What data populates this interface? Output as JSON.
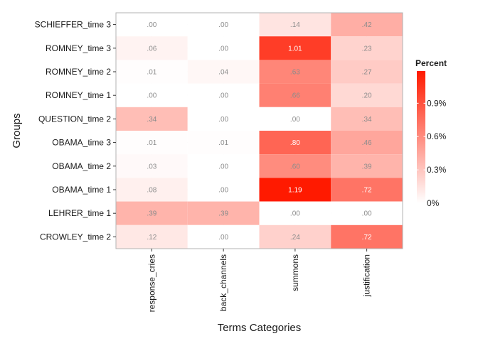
{
  "chart_data": {
    "type": "heatmap",
    "xlabel": "Terms Categories",
    "ylabel": "Groups",
    "x_categories": [
      "response_cries",
      "back_channels",
      "summons",
      "justification"
    ],
    "y_categories": [
      "SCHIEFFER_time 3",
      "ROMNEY_time 3",
      "ROMNEY_time 2",
      "ROMNEY_time 1",
      "QUESTION_time 2",
      "OBAMA_time 3",
      "OBAMA_time 2",
      "OBAMA_time 1",
      "LEHRER_time 1",
      "CROWLEY_time 2"
    ],
    "values": [
      [
        0.0,
        0.0,
        0.14,
        0.42
      ],
      [
        0.06,
        0.0,
        1.01,
        0.23
      ],
      [
        0.01,
        0.04,
        0.63,
        0.27
      ],
      [
        0.0,
        0.0,
        0.66,
        0.2
      ],
      [
        0.34,
        0.0,
        0.0,
        0.34
      ],
      [
        0.01,
        0.01,
        0.8,
        0.46
      ],
      [
        0.03,
        0.0,
        0.6,
        0.39
      ],
      [
        0.08,
        0.0,
        1.19,
        0.72
      ],
      [
        0.39,
        0.39,
        0.0,
        0.0
      ],
      [
        0.12,
        0.0,
        0.24,
        0.72
      ]
    ],
    "cell_labels": [
      [
        ".00",
        ".00",
        ".14",
        ".42"
      ],
      [
        ".06",
        ".00",
        "1.01",
        ".23"
      ],
      [
        ".01",
        ".04",
        ".63",
        ".27"
      ],
      [
        ".00",
        ".00",
        ".66",
        ".20"
      ],
      [
        ".34",
        ".00",
        ".00",
        ".34"
      ],
      [
        ".01",
        ".01",
        ".80",
        ".46"
      ],
      [
        ".03",
        ".00",
        ".60",
        ".39"
      ],
      [
        ".08",
        ".00",
        "1.19",
        ".72"
      ],
      [
        ".39",
        ".39",
        ".00",
        ".00"
      ],
      [
        ".12",
        ".00",
        ".24",
        ".72"
      ]
    ],
    "legend": {
      "title": "Percent",
      "placement": "right",
      "range": [
        0,
        1.19
      ],
      "ticks": [
        0,
        0.3,
        0.6,
        0.9
      ],
      "tick_labels": [
        "0%",
        "0.3%",
        "0.6%",
        "0.9%"
      ],
      "low_color": "#ffffff",
      "high_color": "#ff1a00"
    },
    "grid": true
  }
}
